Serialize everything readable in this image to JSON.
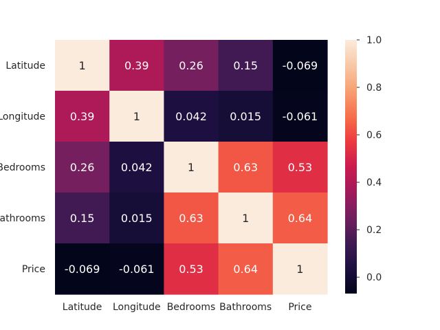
{
  "chart_data": {
    "type": "heatmap",
    "title": "",
    "xlabel": "",
    "ylabel": "",
    "x_labels": [
      "Latitude",
      "Longitude",
      "Bedrooms",
      "Bathrooms",
      "Price"
    ],
    "y_labels": [
      "Latitude",
      "Longitude",
      "Bedrooms",
      "Bathrooms",
      "Price"
    ],
    "values": [
      [
        1,
        0.39,
        0.26,
        0.15,
        -0.069
      ],
      [
        0.39,
        1,
        0.042,
        0.015,
        -0.061
      ],
      [
        0.26,
        0.042,
        1,
        0.63,
        0.53
      ],
      [
        0.15,
        0.015,
        0.63,
        1,
        0.64
      ],
      [
        -0.069,
        -0.061,
        0.53,
        0.64,
        1
      ]
    ],
    "annotations": [
      [
        "1",
        "0.39",
        "0.26",
        "0.15",
        "-0.069"
      ],
      [
        "0.39",
        "1",
        "0.042",
        "0.015",
        "-0.061"
      ],
      [
        "0.26",
        "0.042",
        "1",
        "0.63",
        "0.53"
      ],
      [
        "0.15",
        "0.015",
        "0.63",
        "1",
        "0.64"
      ],
      [
        "-0.069",
        "-0.061",
        "0.53",
        "0.64",
        "1"
      ]
    ],
    "colorbar": {
      "vmin": -0.069,
      "vmax": 1.0,
      "ticks": [
        0.0,
        0.2,
        0.4,
        0.6,
        0.8,
        1.0
      ],
      "tick_labels": [
        "0.0",
        "0.2",
        "0.4",
        "0.6",
        "0.8",
        "1.0"
      ],
      "colormap": "rocket"
    },
    "colormap_stops": [
      "#03051a",
      "#1c1040",
      "#3f1a53",
      "#711f5e",
      "#a11a5b",
      "#cb1b4f",
      "#ed3a3f",
      "#f6704a",
      "#f7a073",
      "#f8c8a6",
      "#faebdd"
    ],
    "grid": false
  }
}
